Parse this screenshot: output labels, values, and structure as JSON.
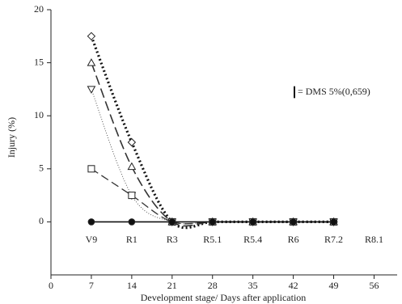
{
  "chart_data": {
    "type": "line",
    "y_label": "Injury (%)",
    "x_label": "Development stage/ Days after application",
    "x": [
      7,
      14,
      21,
      28,
      35,
      42,
      49
    ],
    "series": [
      {
        "marker": "diamond",
        "dash": "2,3",
        "width": 3.2,
        "color": "#111111",
        "values": [
          17.5,
          7.5,
          0,
          0,
          0,
          0,
          0
        ]
      },
      {
        "marker": "triangle",
        "dash": "12,5",
        "width": 1.6,
        "color": "#333333",
        "values": [
          15,
          5.2,
          0,
          0,
          0,
          0,
          0
        ]
      },
      {
        "marker": "triangle-down",
        "dash": "1,2",
        "width": 1,
        "color": "#555555",
        "values": [
          12.5,
          2.5,
          0,
          0,
          0,
          0,
          0
        ]
      },
      {
        "marker": "square",
        "dash": "10,5",
        "width": 1.3,
        "color": "#333333",
        "values": [
          5,
          2.5,
          0,
          0,
          0,
          0,
          0
        ]
      },
      {
        "marker": "circle",
        "dash": "",
        "width": 1.6,
        "color": "#111111",
        "values": [
          0,
          0,
          0,
          0,
          0,
          0,
          0
        ]
      }
    ],
    "xlim": [
      0,
      60
    ],
    "xticks": [
      0,
      7,
      14,
      21,
      28,
      35,
      42,
      49,
      56
    ],
    "ylim": [
      -5,
      20
    ],
    "yticks": [
      0,
      5,
      10,
      15,
      20
    ],
    "stages": [
      {
        "x": 7,
        "label": "V9"
      },
      {
        "x": 14,
        "label": "R1"
      },
      {
        "x": 21,
        "label": "R3"
      },
      {
        "x": 28,
        "label": "R5.1"
      },
      {
        "x": 35,
        "label": "R5.4"
      },
      {
        "x": 42,
        "label": "R6"
      },
      {
        "x": 49,
        "label": "R7.2"
      },
      {
        "x": 56,
        "label": "R8.1"
      }
    ],
    "lsd": {
      "value": 0.659,
      "label": "= DMS 5%(0,659)"
    }
  }
}
